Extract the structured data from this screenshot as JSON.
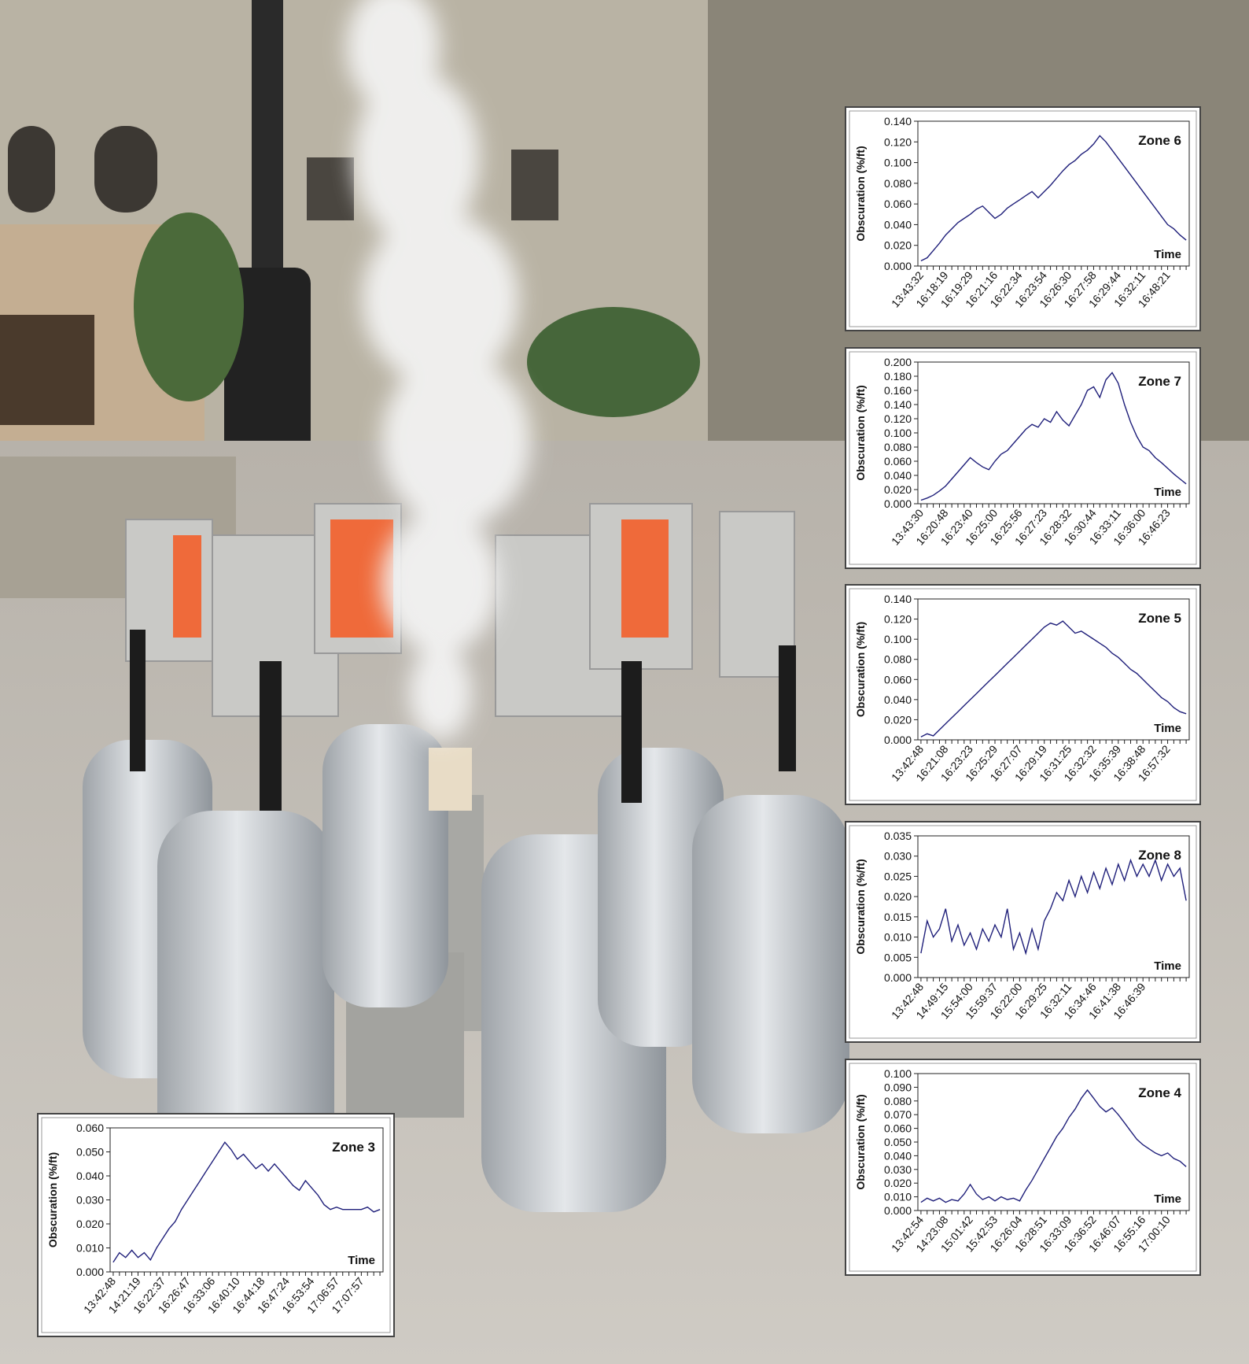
{
  "chart_data": [
    {
      "type": "line",
      "title": "Zone 6",
      "y_label": "Obscuration (%/ft)",
      "x_label": "Time",
      "categories": [
        "13:43:32",
        null,
        null,
        null,
        "16:18:19",
        null,
        null,
        null,
        "16:19:29",
        null,
        null,
        null,
        "16:21:16",
        null,
        null,
        null,
        "16:22:34",
        null,
        null,
        null,
        "16:23:54",
        null,
        null,
        null,
        "16:26:30",
        null,
        null,
        null,
        "16:27:58",
        null,
        null,
        null,
        "16:29:44",
        null,
        null,
        null,
        "16:32:11",
        null,
        null,
        null,
        "16:48:21",
        null,
        null,
        null
      ],
      "series": [
        {
          "color": "#1f1f7a",
          "values": [
            0.005,
            0.008,
            0.015,
            0.022,
            0.03,
            0.036,
            0.042,
            0.046,
            0.05,
            0.055,
            0.058,
            0.052,
            0.046,
            0.05,
            0.056,
            0.06,
            0.064,
            0.068,
            0.072,
            0.066,
            0.072,
            0.078,
            0.085,
            0.092,
            0.098,
            0.102,
            0.108,
            0.112,
            0.118,
            0.126,
            0.12,
            0.112,
            0.104,
            0.096,
            0.088,
            0.08,
            0.072,
            0.064,
            0.056,
            0.048,
            0.04,
            0.036,
            0.03,
            0.025
          ]
        }
      ],
      "ylim": [
        0,
        0.14
      ],
      "yticks": [
        {
          "value": 0,
          "label": "0.000"
        },
        {
          "value": 0.02,
          "label": "0.020"
        },
        {
          "value": 0.04,
          "label": "0.040"
        },
        {
          "value": 0.06,
          "label": "0.060"
        },
        {
          "value": 0.08,
          "label": "0.080"
        },
        {
          "value": 0.1,
          "label": "0.100"
        },
        {
          "value": 0.12,
          "label": "0.120"
        },
        {
          "value": 0.14,
          "label": "0.140"
        }
      ]
    },
    {
      "type": "line",
      "title": "Zone 7",
      "y_label": "Obscuration (%/ft)",
      "x_label": "Time",
      "categories": [
        "13:43:30",
        null,
        null,
        null,
        "16:20:48",
        null,
        null,
        null,
        "16:23:40",
        null,
        null,
        null,
        "16:25:00",
        null,
        null,
        null,
        "16:25:56",
        null,
        null,
        null,
        "16:27:23",
        null,
        null,
        null,
        "16:28:32",
        null,
        null,
        null,
        "16:30:44",
        null,
        null,
        null,
        "16:33:11",
        null,
        null,
        null,
        "16:36:00",
        null,
        null,
        null,
        "16:46:23",
        null,
        null,
        null
      ],
      "series": [
        {
          "color": "#1f1f7a",
          "values": [
            0.005,
            0.008,
            0.012,
            0.018,
            0.025,
            0.035,
            0.045,
            0.055,
            0.065,
            0.058,
            0.052,
            0.048,
            0.06,
            0.07,
            0.075,
            0.085,
            0.095,
            0.105,
            0.112,
            0.108,
            0.12,
            0.115,
            0.13,
            0.118,
            0.11,
            0.125,
            0.14,
            0.16,
            0.165,
            0.15,
            0.175,
            0.185,
            0.17,
            0.14,
            0.115,
            0.095,
            0.08,
            0.075,
            0.065,
            0.058,
            0.05,
            0.042,
            0.035,
            0.028
          ]
        }
      ],
      "ylim": [
        0,
        0.2
      ],
      "yticks": [
        {
          "value": 0,
          "label": "0.000"
        },
        {
          "value": 0.02,
          "label": "0.020"
        },
        {
          "value": 0.04,
          "label": "0.040"
        },
        {
          "value": 0.06,
          "label": "0.060"
        },
        {
          "value": 0.08,
          "label": "0.080"
        },
        {
          "value": 0.1,
          "label": "0.100"
        },
        {
          "value": 0.12,
          "label": "0.120"
        },
        {
          "value": 0.14,
          "label": "0.140"
        },
        {
          "value": 0.16,
          "label": "0.160"
        },
        {
          "value": 0.18,
          "label": "0.180"
        },
        {
          "value": 0.2,
          "label": "0.200"
        }
      ]
    },
    {
      "type": "line",
      "title": "Zone 5",
      "y_label": "Obscuration (%/ft)",
      "x_label": "Time",
      "categories": [
        "13:42:48",
        null,
        null,
        null,
        "16:21:08",
        null,
        null,
        null,
        "16:23:23",
        null,
        null,
        null,
        "16:25:29",
        null,
        null,
        null,
        "16:27:07",
        null,
        null,
        null,
        "16:29:19",
        null,
        null,
        null,
        "16:31:25",
        null,
        null,
        null,
        "16:32:32",
        null,
        null,
        null,
        "16:35:39",
        null,
        null,
        null,
        "16:38:48",
        null,
        null,
        null,
        "16:57:32",
        null,
        null,
        null
      ],
      "series": [
        {
          "color": "#1f1f7a",
          "values": [
            0.003,
            0.006,
            0.004,
            0.01,
            0.016,
            0.022,
            0.028,
            0.034,
            0.04,
            0.046,
            0.052,
            0.058,
            0.064,
            0.07,
            0.076,
            0.082,
            0.088,
            0.094,
            0.1,
            0.106,
            0.112,
            0.116,
            0.114,
            0.118,
            0.112,
            0.106,
            0.108,
            0.104,
            0.1,
            0.096,
            0.092,
            0.086,
            0.082,
            0.076,
            0.07,
            0.066,
            0.06,
            0.054,
            0.048,
            0.042,
            0.038,
            0.032,
            0.028,
            0.026
          ]
        }
      ],
      "ylim": [
        0,
        0.14
      ],
      "yticks": [
        {
          "value": 0,
          "label": "0.000"
        },
        {
          "value": 0.02,
          "label": "0.020"
        },
        {
          "value": 0.04,
          "label": "0.040"
        },
        {
          "value": 0.06,
          "label": "0.060"
        },
        {
          "value": 0.08,
          "label": "0.080"
        },
        {
          "value": 0.1,
          "label": "0.100"
        },
        {
          "value": 0.12,
          "label": "0.120"
        },
        {
          "value": 0.14,
          "label": "0.140"
        }
      ]
    },
    {
      "type": "line",
      "title": "Zone 8",
      "y_label": "Obscuration (%/ft)",
      "x_label": "Time",
      "categories": [
        "13:42:48",
        null,
        null,
        null,
        "14:49:15",
        null,
        null,
        null,
        "15:54:00",
        null,
        null,
        null,
        "15:59:37",
        null,
        null,
        null,
        "16:22:00",
        null,
        null,
        null,
        "16:29:25",
        null,
        null,
        null,
        "16:32:11",
        null,
        null,
        null,
        "16:34:46",
        null,
        null,
        null,
        "16:41:38",
        null,
        null,
        null,
        "16:46:39",
        null,
        null,
        null,
        null,
        null,
        null,
        null
      ],
      "series": [
        {
          "color": "#1f1f7a",
          "values": [
            0.006,
            0.014,
            0.01,
            0.012,
            0.017,
            0.009,
            0.013,
            0.008,
            0.011,
            0.007,
            0.012,
            0.009,
            0.013,
            0.01,
            0.017,
            0.007,
            0.011,
            0.006,
            0.012,
            0.007,
            0.014,
            0.017,
            0.021,
            0.019,
            0.024,
            0.02,
            0.025,
            0.021,
            0.026,
            0.022,
            0.027,
            0.023,
            0.028,
            0.024,
            0.029,
            0.025,
            0.028,
            0.025,
            0.029,
            0.024,
            0.028,
            0.025,
            0.027,
            0.019
          ]
        }
      ],
      "ylim": [
        0,
        0.035
      ],
      "yticks": [
        {
          "value": 0,
          "label": "0.000"
        },
        {
          "value": 0.005,
          "label": "0.005"
        },
        {
          "value": 0.01,
          "label": "0.010"
        },
        {
          "value": 0.015,
          "label": "0.015"
        },
        {
          "value": 0.02,
          "label": "0.020"
        },
        {
          "value": 0.025,
          "label": "0.025"
        },
        {
          "value": 0.03,
          "label": "0.030"
        },
        {
          "value": 0.035,
          "label": "0.035"
        }
      ]
    },
    {
      "type": "line",
      "title": "Zone 4",
      "y_label": "Obscuration (%/ft)",
      "x_label": "Time",
      "categories": [
        "13:42:54",
        null,
        null,
        null,
        "14:23:08",
        null,
        null,
        null,
        "15:01:42",
        null,
        null,
        null,
        "15:42:53",
        null,
        null,
        null,
        "16:26:04",
        null,
        null,
        null,
        "16:28:51",
        null,
        null,
        null,
        "16:33:09",
        null,
        null,
        null,
        "16:36:52",
        null,
        null,
        null,
        "16:46:07",
        null,
        null,
        null,
        "16:55:16",
        null,
        null,
        null,
        "17:00:10",
        null,
        null,
        null
      ],
      "series": [
        {
          "color": "#1f1f7a",
          "values": [
            0.006,
            0.009,
            0.007,
            0.009,
            0.006,
            0.008,
            0.007,
            0.012,
            0.019,
            0.012,
            0.008,
            0.01,
            0.007,
            0.01,
            0.008,
            0.009,
            0.007,
            0.015,
            0.022,
            0.03,
            0.038,
            0.046,
            0.054,
            0.06,
            0.068,
            0.074,
            0.082,
            0.088,
            0.082,
            0.076,
            0.072,
            0.075,
            0.07,
            0.064,
            0.058,
            0.052,
            0.048,
            0.045,
            0.042,
            0.04,
            0.042,
            0.038,
            0.036,
            0.032
          ]
        }
      ],
      "ylim": [
        0,
        0.1
      ],
      "yticks": [
        {
          "value": 0,
          "label": "0.000"
        },
        {
          "value": 0.01,
          "label": "0.010"
        },
        {
          "value": 0.02,
          "label": "0.020"
        },
        {
          "value": 0.03,
          "label": "0.030"
        },
        {
          "value": 0.04,
          "label": "0.040"
        },
        {
          "value": 0.05,
          "label": "0.050"
        },
        {
          "value": 0.06,
          "label": "0.060"
        },
        {
          "value": 0.07,
          "label": "0.070"
        },
        {
          "value": 0.08,
          "label": "0.080"
        },
        {
          "value": 0.09,
          "label": "0.090"
        },
        {
          "value": 0.1,
          "label": "0.100"
        }
      ]
    },
    {
      "type": "line",
      "title": "Zone 3",
      "y_label": "Obscuration (%/ft)",
      "x_label": "Time",
      "categories": [
        "13:42:48",
        null,
        null,
        null,
        "14:21:19",
        null,
        null,
        null,
        "16:22:37",
        null,
        null,
        null,
        "16:26:47",
        null,
        null,
        null,
        "16:33:06",
        null,
        null,
        null,
        "16:40:10",
        null,
        null,
        null,
        "16:44:18",
        null,
        null,
        null,
        "16:47:24",
        null,
        null,
        null,
        "16:53:54",
        null,
        null,
        null,
        "17:06:57",
        null,
        null,
        null,
        "17:07:57",
        null,
        null,
        null
      ],
      "series": [
        {
          "color": "#1f1f7a",
          "values": [
            0.004,
            0.008,
            0.006,
            0.009,
            0.006,
            0.008,
            0.005,
            0.01,
            0.014,
            0.018,
            0.021,
            0.026,
            0.03,
            0.034,
            0.038,
            0.042,
            0.046,
            0.05,
            0.054,
            0.051,
            0.047,
            0.049,
            0.046,
            0.043,
            0.045,
            0.042,
            0.045,
            0.042,
            0.039,
            0.036,
            0.034,
            0.038,
            0.035,
            0.032,
            0.028,
            0.026,
            0.027,
            0.026,
            0.026,
            0.026,
            0.026,
            0.027,
            0.025,
            0.026
          ]
        }
      ],
      "ylim": [
        0,
        0.06
      ],
      "yticks": [
        {
          "value": 0,
          "label": "0.000"
        },
        {
          "value": 0.01,
          "label": "0.010"
        },
        {
          "value": 0.02,
          "label": "0.020"
        },
        {
          "value": 0.03,
          "label": "0.030"
        },
        {
          "value": 0.04,
          "label": "0.040"
        },
        {
          "value": 0.05,
          "label": "0.050"
        },
        {
          "value": 0.06,
          "label": "0.060"
        }
      ]
    }
  ]
}
